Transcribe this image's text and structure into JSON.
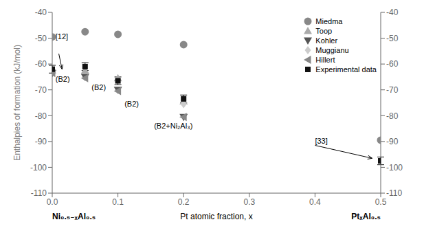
{
  "chart_data": {
    "type": "scatter",
    "xlabel": "Pt atomic fraction, x",
    "ylabel": "Enthalpies of formation (kJ/mol)",
    "xlim": [
      0,
      0.5
    ],
    "xticks": [
      {
        "value": 0,
        "label": "0.0"
      },
      0.1,
      0.2,
      0.3,
      0.4,
      0.5
    ],
    "ylim": [
      -110,
      -40
    ],
    "yticks": [
      -110,
      -100,
      -90,
      -80,
      -70,
      -60,
      -50,
      -40
    ],
    "y2lim": [
      -110,
      -40
    ],
    "y2ticks": [
      -110,
      -100,
      -90,
      -80,
      -70,
      -60,
      -50,
      -40
    ],
    "legend": "upper right",
    "series": [
      {
        "name": "Miedma",
        "color": "#888888",
        "marker": "circle",
        "x": [
          0.0,
          0.05,
          0.1,
          0.2,
          0.5
        ],
        "values": [
          -49.5,
          -47.5,
          -48.5,
          -52.5,
          -89.5
        ]
      },
      {
        "name": "Toop",
        "color": "#aaaaaa",
        "marker": "triangle-up",
        "x": [
          0.0,
          0.05,
          0.1,
          0.2
        ],
        "values": [
          -62.5,
          -62.5,
          -65.5,
          -74.5
        ]
      },
      {
        "name": "Kohler",
        "color": "#555555",
        "marker": "triangle-down",
        "x": [
          0.0,
          0.05,
          0.1,
          0.2
        ],
        "values": [
          -63.5,
          -65.0,
          -70.0,
          -80.5
        ]
      },
      {
        "name": "Muggianu",
        "color": "#cccccc",
        "marker": "diamond",
        "x": [
          0.2
        ],
        "values": [
          -75.5
        ]
      },
      {
        "name": "Hillert",
        "color": "#888888",
        "marker": "triangle-left",
        "x": [
          0.0,
          0.05,
          0.1,
          0.2
        ],
        "values": [
          -63.5,
          -65.5,
          -70.5,
          -80.5
        ]
      },
      {
        "name": "Experimental data",
        "color": "#111111",
        "marker": "square",
        "x": [
          0.0,
          0.05,
          0.1,
          0.2,
          0.5
        ],
        "values": [
          -62.0,
          -61.0,
          -66.5,
          -73.5,
          -97.5
        ],
        "errors": [
          1.5,
          1.5,
          1.5,
          1.5,
          1.5
        ]
      }
    ],
    "annotations": [
      {
        "text": "[12]",
        "x": 0.005,
        "y": -51.0,
        "arrow_from": [
          0.01,
          -56.0
        ],
        "arrow_to": [
          0.015,
          -62.0
        ]
      },
      {
        "text": "[33]",
        "x": 0.4,
        "y": -91.5,
        "arrow_from": [
          0.4,
          -91.5
        ],
        "arrow_to": [
          0.487,
          -96.5
        ]
      },
      {
        "text": "(B2)",
        "x": 0.005,
        "y": -67.5
      },
      {
        "text": "(B2)",
        "x": 0.06,
        "y": -70.5
      },
      {
        "text": "(B2)",
        "x": 0.11,
        "y": -77.0
      },
      {
        "text": "(B2+Ni₂Al₃)",
        "x": 0.155,
        "y": -85.5
      }
    ],
    "x_end_labels": [
      "Ni₀.₅₋ₓAl₀.₅",
      "PtₓAl₀.₅"
    ]
  }
}
